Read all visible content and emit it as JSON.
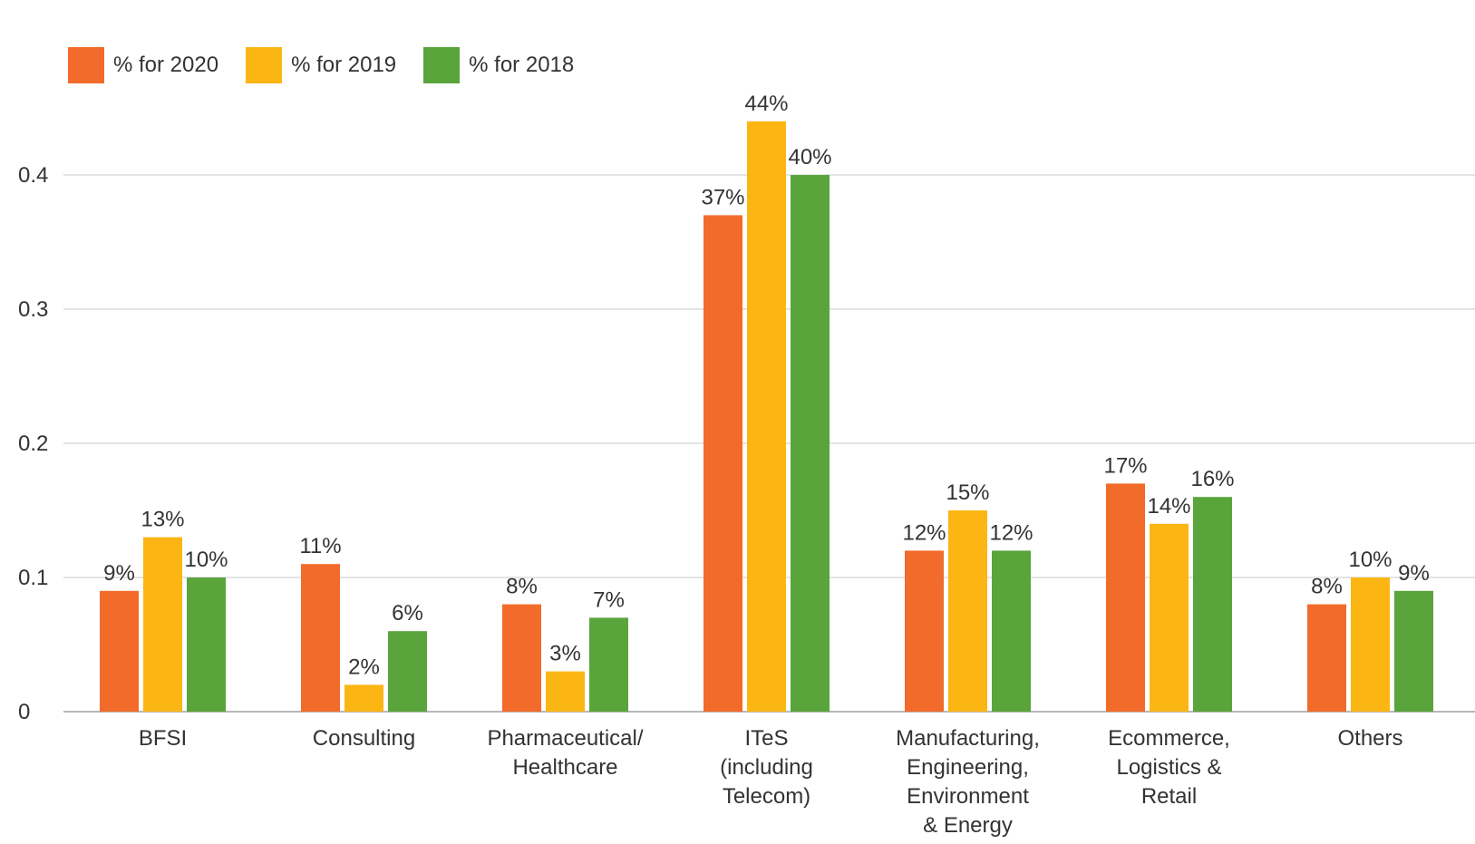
{
  "chart_data": {
    "type": "bar",
    "title": "",
    "xlabel": "",
    "ylabel": "",
    "ylim": [
      0,
      0.45
    ],
    "yticks": [
      "0",
      "0.1",
      "0.2",
      "0.3",
      "0.4"
    ],
    "ytick_values": [
      0,
      0.1,
      0.2,
      0.3,
      0.4
    ],
    "grid": true,
    "legend_position": "top-left",
    "categories": [
      [
        "BFSI"
      ],
      [
        "Consulting"
      ],
      [
        "Pharmaceutical/",
        "Healthcare"
      ],
      [
        "ITeS",
        "(including",
        "Telecom)"
      ],
      [
        "Manufacturing,",
        "Engineering,",
        "Environment",
        "& Energy"
      ],
      [
        "Ecommerce,",
        "Logistics &",
        "Retail"
      ],
      [
        "Others"
      ]
    ],
    "series": [
      {
        "name": "% for 2020",
        "color": "#f26b2a",
        "values": [
          0.09,
          0.11,
          0.08,
          0.37,
          0.12,
          0.17,
          0.08
        ],
        "labels": [
          "9%",
          "11%",
          "8%",
          "37%",
          "12%",
          "17%",
          "8%"
        ]
      },
      {
        "name": "% for 2019",
        "color": "#fbb614",
        "values": [
          0.13,
          0.02,
          0.03,
          0.44,
          0.15,
          0.14,
          0.1
        ],
        "labels": [
          "13%",
          "2%",
          "3%",
          "44%",
          "15%",
          "14%",
          "10%"
        ]
      },
      {
        "name": "% for 2018",
        "color": "#5aa43c",
        "values": [
          0.1,
          0.06,
          0.07,
          0.4,
          0.12,
          0.16,
          0.09
        ],
        "labels": [
          "10%",
          "6%",
          "7%",
          "40%",
          "12%",
          "16%",
          "9%"
        ]
      }
    ]
  }
}
